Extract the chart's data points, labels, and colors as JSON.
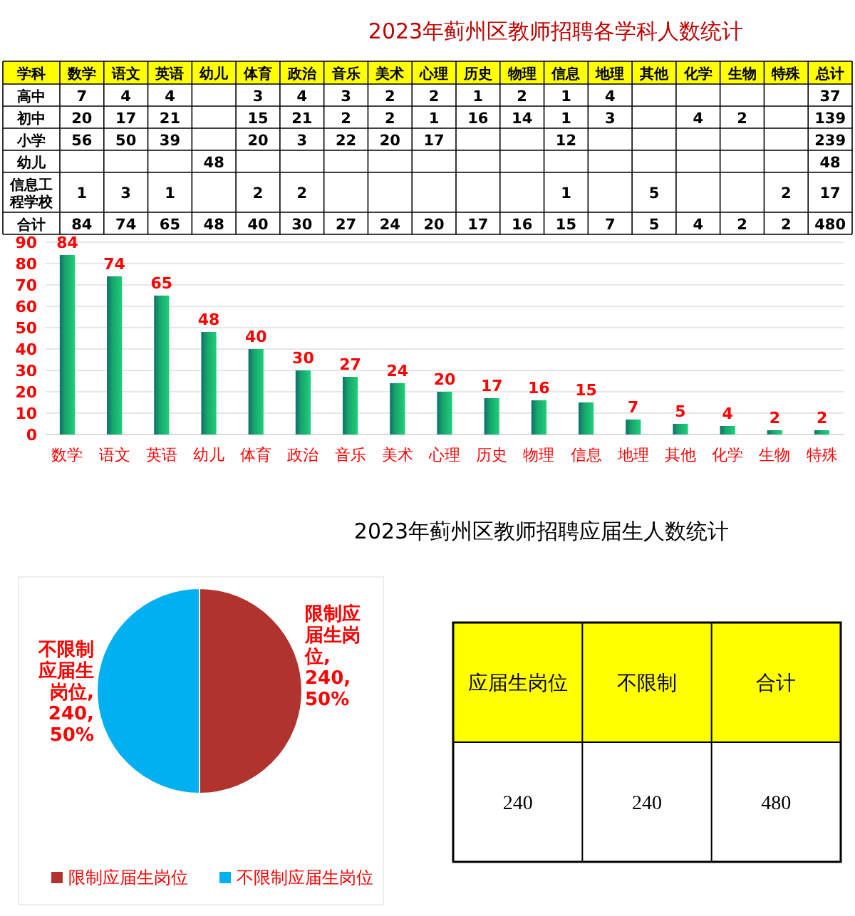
{
  "chart_data": [
    {
      "type": "heatmap",
      "title": "2023年蓟州区教师招聘各学科人数统计",
      "xlabel": "学科",
      "color": "#ffff00",
      "data_labels": true,
      "categories": [
        "数学",
        "语文",
        "英语",
        "幼儿",
        "体育",
        "政治",
        "音乐",
        "美术",
        "心理",
        "历史",
        "物理",
        "信息",
        "地理",
        "其他",
        "化学",
        "生物",
        "特殊",
        "总计"
      ],
      "y_categories": [
        "高中",
        "初中",
        "小学",
        "幼儿",
        "信息工程学校",
        "合计"
      ],
      "cells": [
        [
          7,
          4,
          4,
          null,
          3,
          4,
          3,
          2,
          2,
          1,
          2,
          1,
          4,
          null,
          null,
          null,
          null,
          37
        ],
        [
          20,
          17,
          21,
          null,
          15,
          21,
          2,
          2,
          1,
          16,
          14,
          1,
          3,
          null,
          4,
          2,
          null,
          139
        ],
        [
          56,
          50,
          39,
          null,
          20,
          3,
          22,
          20,
          17,
          null,
          null,
          12,
          null,
          null,
          null,
          null,
          null,
          239
        ],
        [
          null,
          null,
          null,
          48,
          null,
          null,
          null,
          null,
          null,
          null,
          null,
          null,
          null,
          null,
          null,
          null,
          null,
          48
        ],
        [
          1,
          3,
          1,
          null,
          2,
          2,
          null,
          null,
          null,
          null,
          null,
          1,
          null,
          5,
          null,
          null,
          2,
          17
        ],
        [
          84,
          74,
          65,
          48,
          40,
          30,
          27,
          24,
          20,
          17,
          16,
          15,
          7,
          5,
          4,
          2,
          2,
          480
        ]
      ]
    },
    {
      "type": "bar",
      "categories": [
        "数学",
        "语文",
        "英语",
        "幼儿",
        "体育",
        "政治",
        "音乐",
        "美术",
        "心理",
        "历史",
        "物理",
        "信息",
        "地理",
        "其他",
        "化学",
        "生物",
        "特殊"
      ],
      "values": [
        84,
        74,
        65,
        48,
        40,
        30,
        27,
        24,
        20,
        17,
        16,
        15,
        7,
        5,
        4,
        2,
        2
      ],
      "color": "#16a36a",
      "ylim": [
        0,
        90
      ],
      "yticks": [
        0,
        10,
        20,
        30,
        40,
        50,
        60,
        70,
        80,
        90
      ],
      "grid": "y",
      "data_labels": true
    },
    {
      "type": "pie",
      "title": "2023年蓟州区教师招聘应届生人数统计",
      "categories": [
        "限制应届生岗位",
        "不限制应届生岗位"
      ],
      "values": [
        240,
        240
      ],
      "colors": [
        "#b0332e",
        "#00b0f0"
      ],
      "value_labels": [
        "限制应届生岗位, 240, 50%",
        "不限制应届生岗位, 240, 50%"
      ],
      "legend": "bottom"
    },
    {
      "type": "heatmap",
      "color": "#ffff00",
      "data_labels": true,
      "categories": [
        "应届生岗位",
        "不限制",
        "合计"
      ],
      "y_categories": [
        null
      ],
      "cells": [
        [
          240,
          240,
          480
        ]
      ]
    }
  ]
}
